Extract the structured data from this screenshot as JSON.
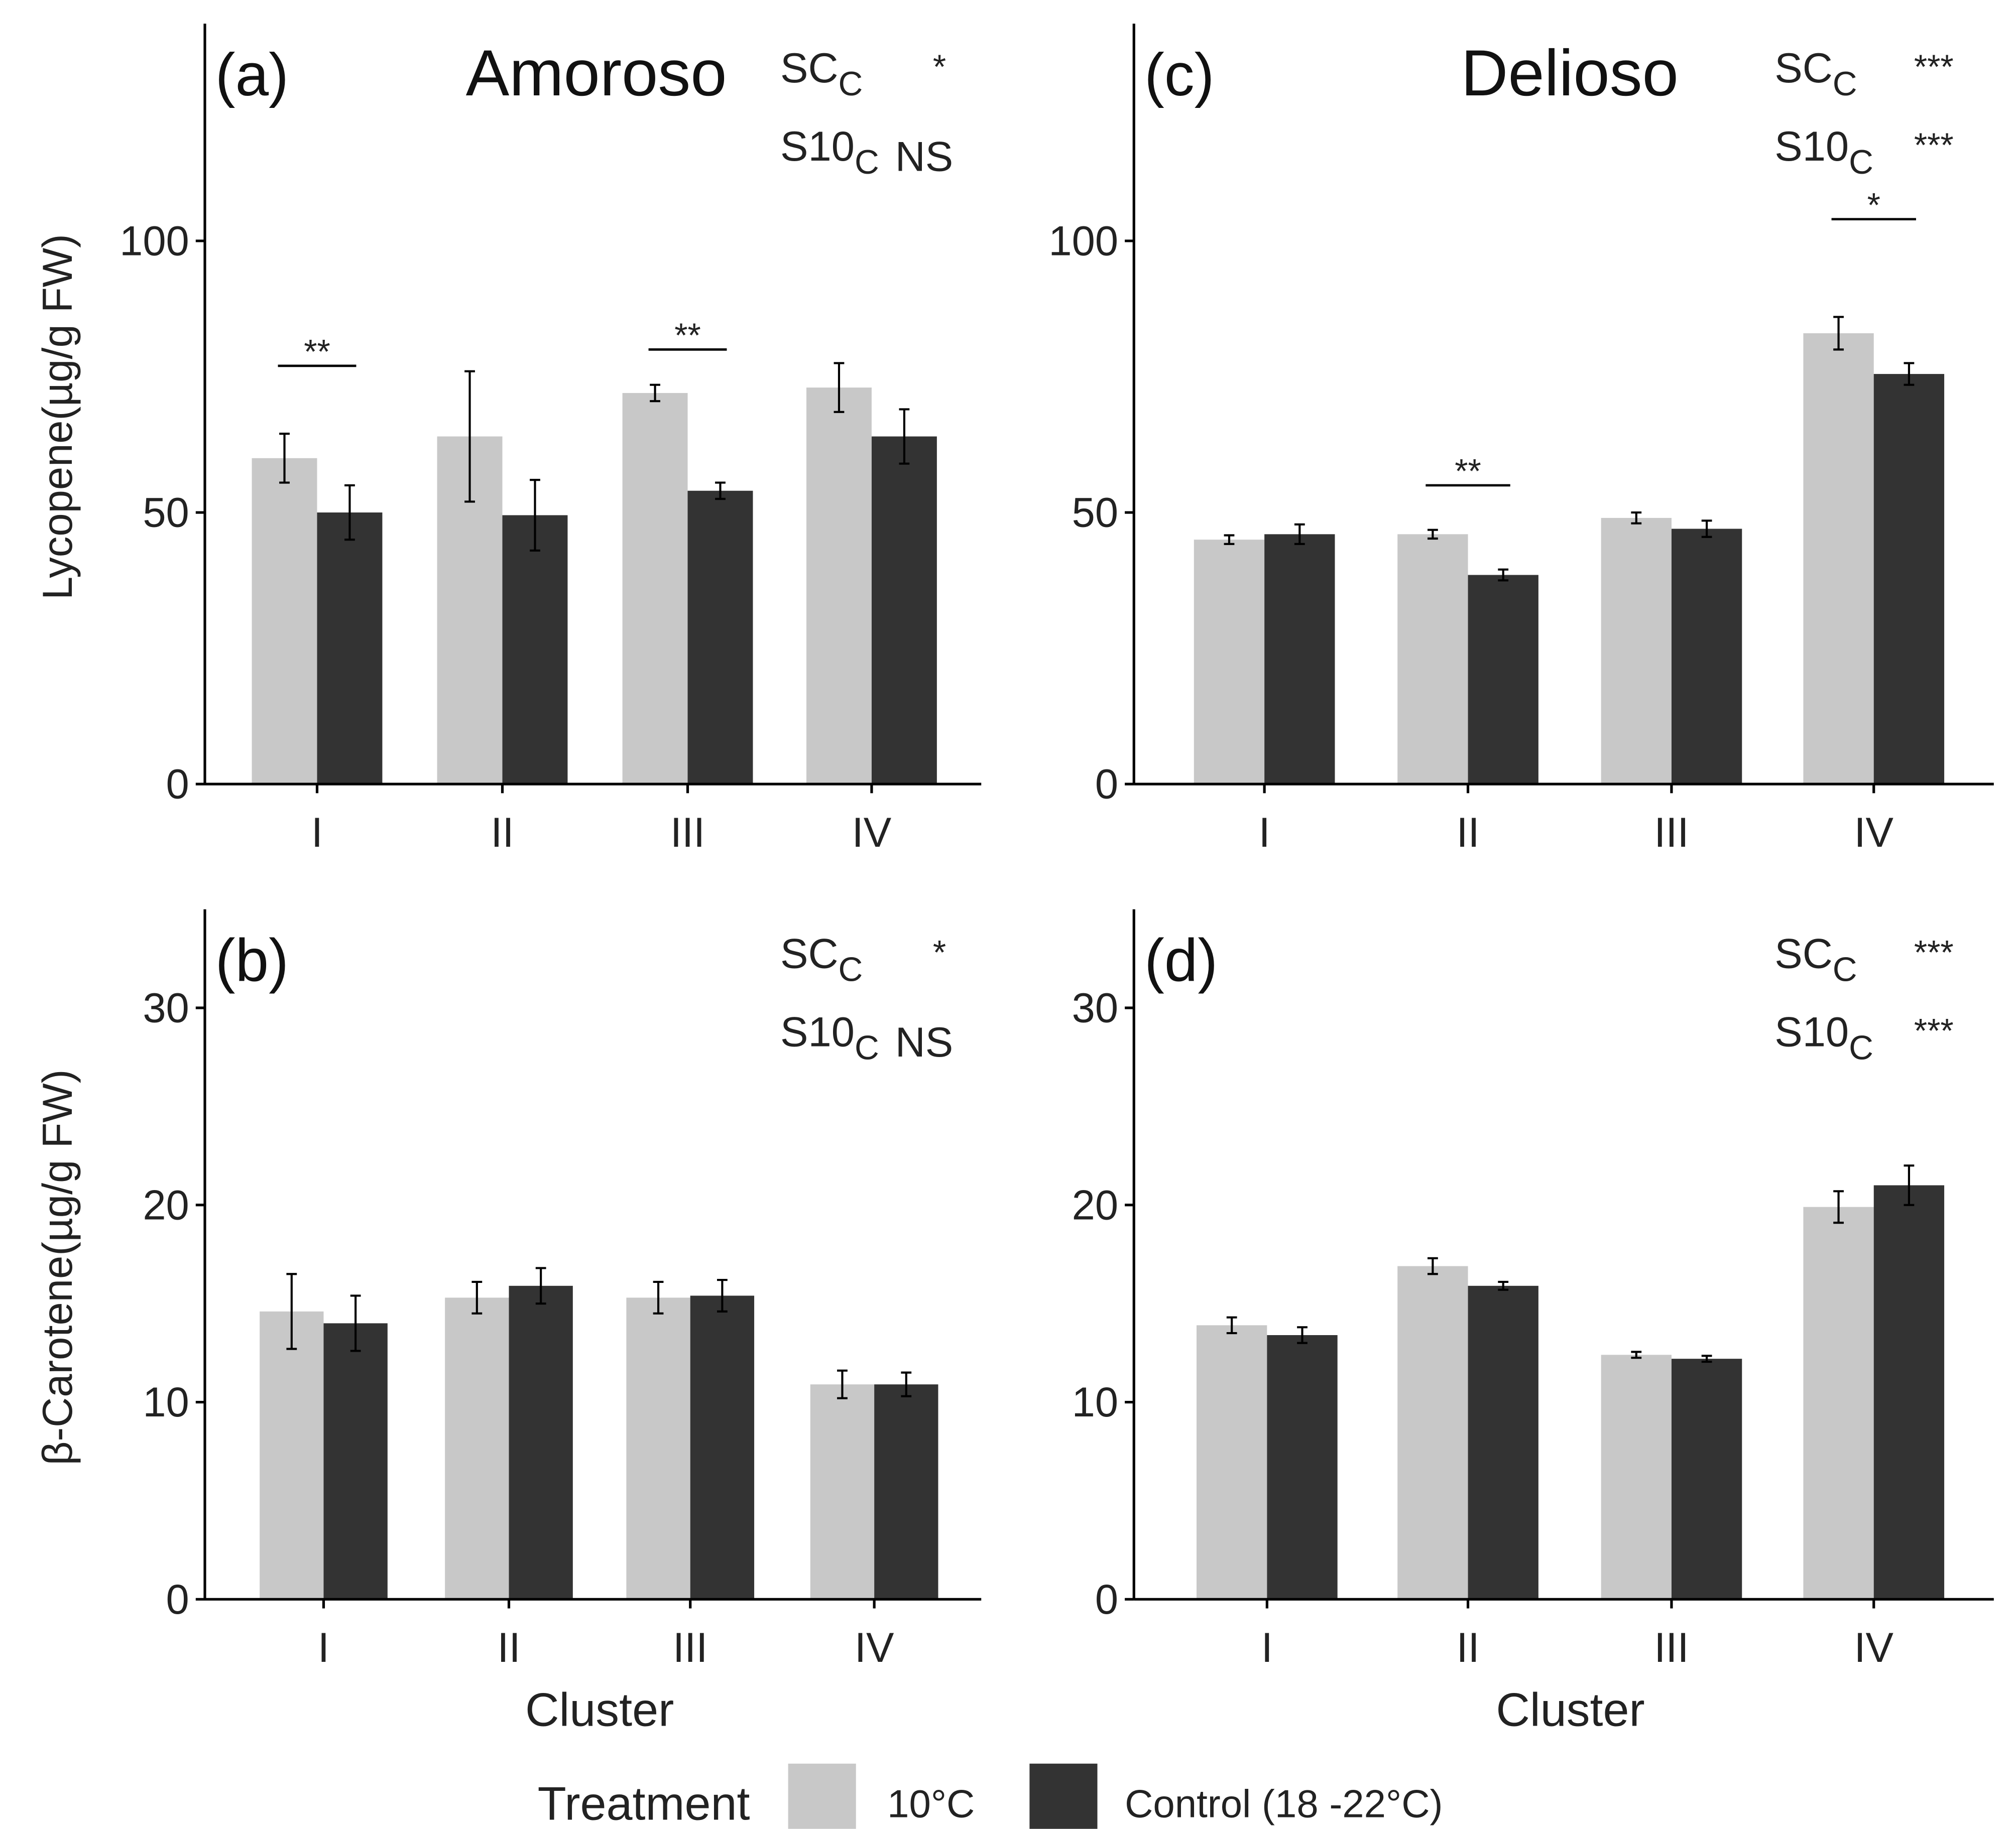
{
  "legend": {
    "title": "Treatment",
    "items": [
      {
        "label": "10°C",
        "color": "#c8c8c8"
      },
      {
        "label": "Control (18 -22°C)",
        "color": "#333333"
      }
    ]
  },
  "shared_xlabel": "Cluster",
  "chart_data": [
    {
      "id": "a",
      "type": "bar",
      "panel_label": "(a)",
      "title": "Amoroso",
      "ylabel": "Lycopene(µg/g FW)",
      "categories": [
        "I",
        "II",
        "III",
        "IV"
      ],
      "ylim": [
        0,
        140
      ],
      "yticks": [
        0,
        50,
        100
      ],
      "series": [
        {
          "name": "10°C",
          "values": [
            60,
            64,
            72,
            73
          ],
          "errors": [
            4.5,
            12,
            1.5,
            4.5
          ]
        },
        {
          "name": "Control (18 -22°C)",
          "values": [
            50,
            49.5,
            54,
            64
          ],
          "errors": [
            5,
            6.5,
            1.5,
            5
          ]
        }
      ],
      "significance": [
        {
          "category": "I",
          "label": "**",
          "y": 77
        },
        {
          "category": "III",
          "label": "**",
          "y": 80
        }
      ],
      "stats": [
        {
          "name": "SC",
          "sub": "C",
          "value": "*"
        },
        {
          "name": "S10",
          "sub": "C",
          "value": "NS"
        }
      ]
    },
    {
      "id": "b",
      "type": "bar",
      "panel_label": "(b)",
      "title": "",
      "ylabel": "β-Carotene(µg/g FW)",
      "xlabel": "Cluster",
      "categories": [
        "I",
        "II",
        "III",
        "IV"
      ],
      "ylim": [
        0,
        35
      ],
      "yticks": [
        0,
        10,
        20,
        30
      ],
      "series": [
        {
          "name": "10°C",
          "values": [
            14.6,
            15.3,
            15.3,
            10.9
          ],
          "errors": [
            1.9,
            0.8,
            0.8,
            0.7
          ]
        },
        {
          "name": "Control (18 -22°C)",
          "values": [
            14.0,
            15.9,
            15.4,
            10.9
          ],
          "errors": [
            1.4,
            0.9,
            0.8,
            0.6
          ]
        }
      ],
      "significance": [],
      "stats": [
        {
          "name": "SC",
          "sub": "C",
          "value": "*"
        },
        {
          "name": "S10",
          "sub": "C",
          "value": "NS"
        }
      ]
    },
    {
      "id": "c",
      "type": "bar",
      "panel_label": "(c)",
      "title": "Delioso",
      "ylabel": "",
      "categories": [
        "I",
        "II",
        "III",
        "IV"
      ],
      "ylim": [
        0,
        140
      ],
      "yticks": [
        0,
        50,
        100
      ],
      "series": [
        {
          "name": "10°C",
          "values": [
            45,
            46,
            49,
            83
          ],
          "errors": [
            0.8,
            0.8,
            1,
            3
          ]
        },
        {
          "name": "Control (18 -22°C)",
          "values": [
            46,
            38.5,
            47,
            75.5
          ],
          "errors": [
            1.8,
            1,
            1.5,
            2
          ]
        }
      ],
      "significance": [
        {
          "category": "II",
          "label": "**",
          "y": 55
        },
        {
          "category": "IV",
          "label": "*",
          "y": 104
        }
      ],
      "stats": [
        {
          "name": "SC",
          "sub": "C",
          "value": "***"
        },
        {
          "name": "S10",
          "sub": "C",
          "value": "***"
        }
      ]
    },
    {
      "id": "d",
      "type": "bar",
      "panel_label": "(d)",
      "title": "",
      "ylabel": "",
      "xlabel": "Cluster",
      "categories": [
        "I",
        "II",
        "III",
        "IV"
      ],
      "ylim": [
        0,
        35
      ],
      "yticks": [
        0,
        10,
        20,
        30
      ],
      "series": [
        {
          "name": "10°C",
          "values": [
            13.9,
            16.9,
            12.4,
            19.9
          ],
          "errors": [
            0.4,
            0.4,
            0.15,
            0.8
          ]
        },
        {
          "name": "Control (18 -22°C)",
          "values": [
            13.4,
            15.9,
            12.2,
            21.0
          ],
          "errors": [
            0.4,
            0.2,
            0.15,
            1.0
          ]
        }
      ],
      "significance": [],
      "stats": [
        {
          "name": "SC",
          "sub": "C",
          "value": "***"
        },
        {
          "name": "S10",
          "sub": "C",
          "value": "***"
        }
      ]
    }
  ]
}
